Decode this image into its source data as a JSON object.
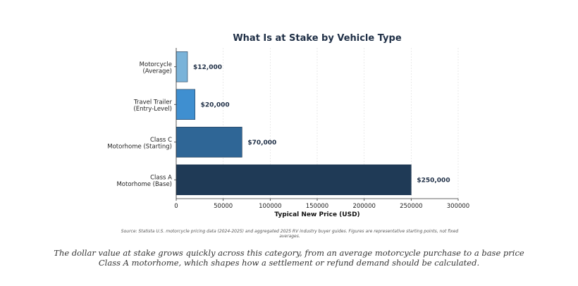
{
  "chart_data": {
    "type": "bar",
    "orientation": "horizontal",
    "title": "What Is at Stake by Vehicle Type",
    "xlabel": "Typical New Price (USD)",
    "ylabel": "",
    "xlim": [
      0,
      300000
    ],
    "xticks": [
      0,
      50000,
      100000,
      150000,
      200000,
      250000,
      300000
    ],
    "grid": "x",
    "categories": [
      [
        "Motorcycle",
        "(Average)"
      ],
      [
        "Travel Trailer",
        "(Entry-Level)"
      ],
      [
        "Class C",
        "Motorhome (Starting)"
      ],
      [
        "Class A",
        "Motorhome (Base)"
      ]
    ],
    "values": [
      12000,
      20000,
      70000,
      250000
    ],
    "data_labels": [
      "$12,000",
      "$20,000",
      "$70,000",
      "$250,000"
    ],
    "colors": [
      "#7ab3d9",
      "#3f8fd0",
      "#2f6696",
      "#1f3a56"
    ],
    "source_note": [
      "Source: Statista U.S. motorcycle pricing data (2024-2025) and aggregated 2025 RV industry buyer guides. Figures are representative starting points, not fixed",
      "averages."
    ]
  },
  "caption": "The dollar value at stake grows quickly across this category, from an average motorcycle purchase to a base price Class A motorhome, which shapes how a settlement or refund demand should be calculated."
}
